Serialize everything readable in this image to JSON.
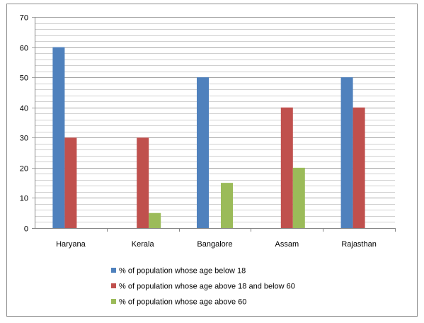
{
  "chart_data": {
    "type": "bar",
    "title": "",
    "xlabel": "",
    "ylabel": "",
    "ylim": [
      0,
      70
    ],
    "y_ticks": [
      "0",
      "10",
      "20",
      "30",
      "40",
      "50",
      "60",
      "70"
    ],
    "grid": true,
    "legend_position": "bottom",
    "categories": [
      "Haryana",
      "Kerala",
      "Bangalore",
      "Assam",
      "Rajasthan"
    ],
    "series": [
      {
        "name": "% of population whose age below 18",
        "color": "#4f81bd",
        "values": [
          60,
          0,
          50,
          0,
          50
        ]
      },
      {
        "name": "% of population whose age above 18 and below 60",
        "color": "#c0504d",
        "values": [
          30,
          30,
          0,
          40,
          40
        ]
      },
      {
        "name": "% of population whose age above 60",
        "color": "#9bbb59",
        "values": [
          0,
          5,
          15,
          20,
          0
        ]
      }
    ]
  }
}
